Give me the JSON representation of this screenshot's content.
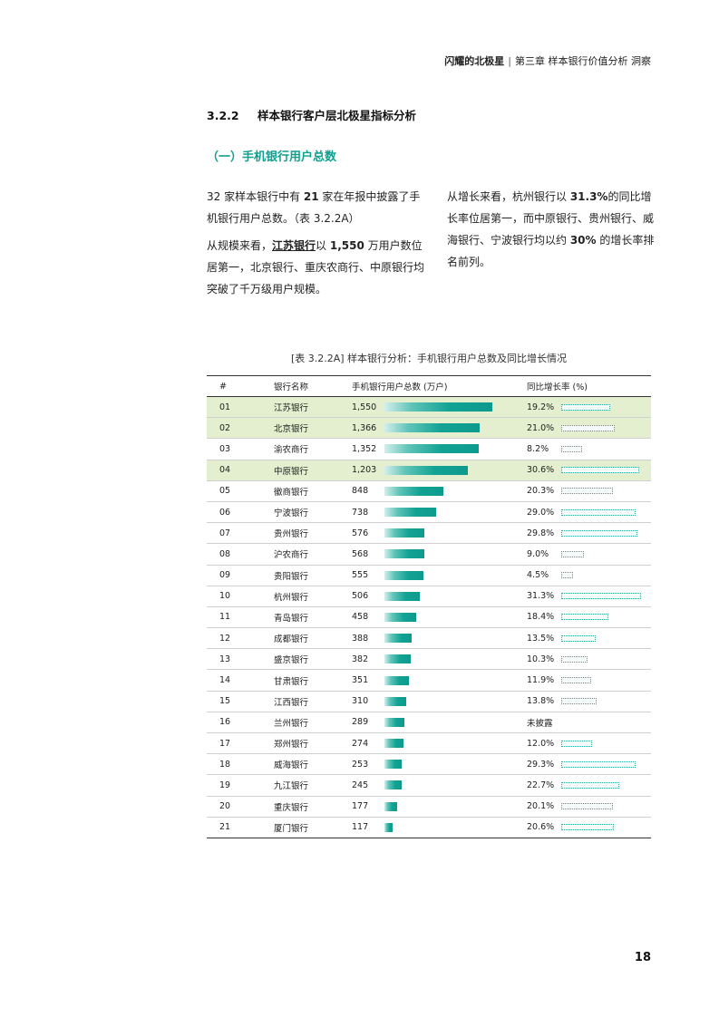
{
  "header": {
    "brand": "闪耀的北极星",
    "separator": "|",
    "chapter": "第三章 样本银行价值分析 洞察"
  },
  "section": {
    "number": "3.2.2",
    "title": "样本银行客户层北极星指标分析"
  },
  "subsection": {
    "title": "（一）手机银行用户总数"
  },
  "body": {
    "left_p1": {
      "a": "32 家样本银行中有 ",
      "b": "21",
      "c": " 家在年报中披露了手机银行用户总数。（表 3.2.2A）"
    },
    "left_p2": {
      "a": "从规模来看，",
      "b": "江苏银行",
      "c": "以 ",
      "d": "1,550",
      "e": " 万用户数位居第一，北京银行、重庆农商行、中原银行均突破了千万级用户规模。"
    },
    "right_p1": {
      "a": "从增长来看，杭州银行以 ",
      "b": "31.3%",
      "c": "的同比增长率位居第一，而中原银行、贵州银行、威海银行、宁波银行均以约 ",
      "d": "30%",
      "e": " 的增长率排名前列。"
    }
  },
  "table": {
    "caption": "[表 3.2.2A] 样本银行分析：手机银行用户总数及同比增长情况",
    "headers": {
      "idx": "#",
      "name": "银行名称",
      "users": "手机银行用户总数 (万户)",
      "rate": "同比增长率 (%)"
    },
    "rows": [
      {
        "idx": "01",
        "name": "江苏银行",
        "users": "1,550",
        "rate": "19.2%"
      },
      {
        "idx": "02",
        "name": "北京银行",
        "users": "1,366",
        "rate": "21.0%"
      },
      {
        "idx": "03",
        "name": "渝农商行",
        "users": "1,352",
        "rate": "8.2%"
      },
      {
        "idx": "04",
        "name": "中原银行",
        "users": "1,203",
        "rate": "30.6%"
      },
      {
        "idx": "05",
        "name": "徽商银行",
        "users": "848",
        "rate": "20.3%"
      },
      {
        "idx": "06",
        "name": "宁波银行",
        "users": "738",
        "rate": "29.0%"
      },
      {
        "idx": "07",
        "name": "贵州银行",
        "users": "576",
        "rate": "29.8%"
      },
      {
        "idx": "08",
        "name": "沪农商行",
        "users": "568",
        "rate": "9.0%"
      },
      {
        "idx": "09",
        "name": "贵阳银行",
        "users": "555",
        "rate": "4.5%"
      },
      {
        "idx": "10",
        "name": "杭州银行",
        "users": "506",
        "rate": "31.3%"
      },
      {
        "idx": "11",
        "name": "青岛银行",
        "users": "458",
        "rate": "18.4%"
      },
      {
        "idx": "12",
        "name": "成都银行",
        "users": "388",
        "rate": "13.5%"
      },
      {
        "idx": "13",
        "name": "盛京银行",
        "users": "382",
        "rate": "10.3%"
      },
      {
        "idx": "14",
        "name": "甘肃银行",
        "users": "351",
        "rate": "11.9%"
      },
      {
        "idx": "15",
        "name": "江西银行",
        "users": "310",
        "rate": "13.8%"
      },
      {
        "idx": "16",
        "name": "兰州银行",
        "users": "289",
        "rate": "未披露"
      },
      {
        "idx": "17",
        "name": "郑州银行",
        "users": "274",
        "rate": "12.0%"
      },
      {
        "idx": "18",
        "name": "威海银行",
        "users": "253",
        "rate": "29.3%"
      },
      {
        "idx": "19",
        "name": "九江银行",
        "users": "245",
        "rate": "22.7%"
      },
      {
        "idx": "20",
        "name": "重庆银行",
        "users": "177",
        "rate": "20.1%"
      },
      {
        "idx": "21",
        "name": "厦门银行",
        "users": "117",
        "rate": "20.6%"
      }
    ],
    "highlight_color": "#e3efcf"
  },
  "chart_data": {
    "type": "table",
    "columns": [
      "#",
      "银行名称",
      "手机银行用户总数 (万户)",
      "同比增长率 (%)"
    ],
    "users": [
      1550,
      1366,
      1352,
      1203,
      848,
      738,
      576,
      568,
      555,
      506,
      458,
      388,
      382,
      351,
      310,
      289,
      274,
      253,
      245,
      177,
      117
    ],
    "growth": [
      19.2,
      21.0,
      8.2,
      30.6,
      20.3,
      29.0,
      29.8,
      9.0,
      4.5,
      31.3,
      18.4,
      13.5,
      10.3,
      11.9,
      13.8,
      null,
      12.0,
      29.3,
      22.7,
      20.1,
      20.6
    ],
    "highlighted_rows": [
      1,
      2,
      4
    ]
  },
  "colors": {
    "accent": "#0fa08f",
    "bar": "#12a394"
  },
  "page_number": "18"
}
